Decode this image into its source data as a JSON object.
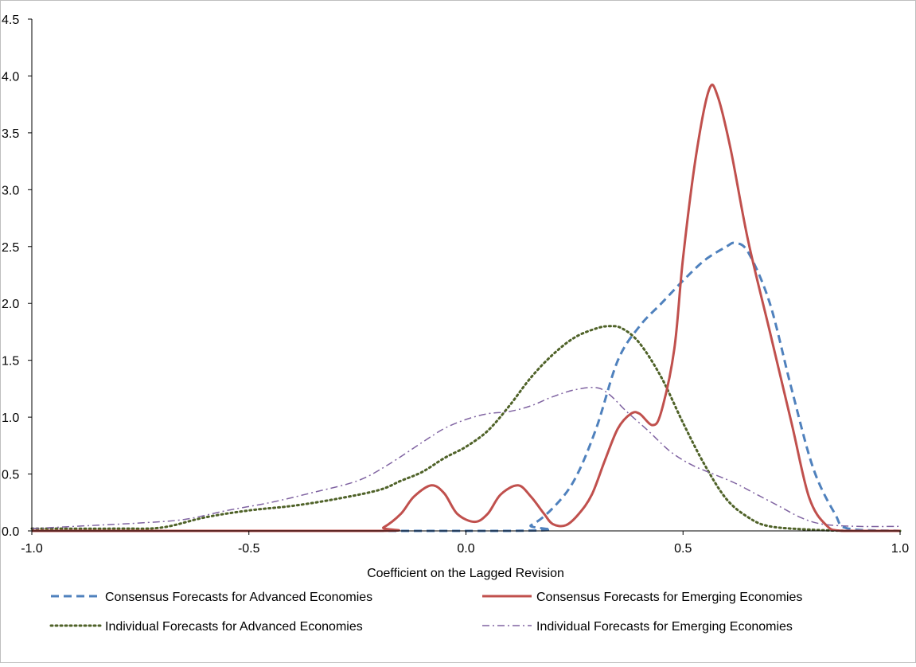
{
  "chart_data": {
    "type": "line",
    "title": "",
    "xlabel": "Coefficient on the Lagged Revision",
    "ylabel": "",
    "xlim": [
      -1.0,
      1.0
    ],
    "ylim": [
      0,
      4.5
    ],
    "x_ticks": [
      "-1.0",
      "-0.5",
      "0.0",
      "0.5",
      "1.0"
    ],
    "y_ticks": [
      "0.0",
      "0.5",
      "1.0",
      "1.5",
      "2.0",
      "2.5",
      "3.0",
      "3.5",
      "4.0",
      "4.5"
    ],
    "grid": false,
    "legend_position": "bottom",
    "series": [
      {
        "name": "Consensus Forecasts for Advanced Economies",
        "color": "#4F81BD",
        "style": "dashed",
        "x": [
          -1.0,
          0.1,
          0.15,
          0.2,
          0.25,
          0.3,
          0.35,
          0.4,
          0.45,
          0.5,
          0.55,
          0.6,
          0.62,
          0.65,
          0.7,
          0.75,
          0.8,
          0.85,
          0.88,
          1.0
        ],
        "y": [
          0.0,
          0.0,
          0.05,
          0.2,
          0.45,
          0.9,
          1.5,
          1.8,
          2.0,
          2.2,
          2.38,
          2.5,
          2.53,
          2.45,
          2.0,
          1.25,
          0.55,
          0.15,
          0.02,
          0.0
        ]
      },
      {
        "name": "Consensus Forecasts for Emerging Economies",
        "color": "#C0504D",
        "style": "solid",
        "x": [
          -1.0,
          -0.22,
          -0.19,
          -0.15,
          -0.12,
          -0.08,
          -0.05,
          -0.02,
          0.02,
          0.05,
          0.08,
          0.12,
          0.15,
          0.18,
          0.2,
          0.23,
          0.26,
          0.29,
          0.32,
          0.35,
          0.38,
          0.4,
          0.43,
          0.45,
          0.48,
          0.5,
          0.53,
          0.56,
          0.58,
          0.61,
          0.65,
          0.7,
          0.75,
          0.79,
          0.83,
          0.87,
          1.0
        ],
        "y": [
          0.0,
          0.0,
          0.03,
          0.15,
          0.3,
          0.4,
          0.33,
          0.15,
          0.08,
          0.15,
          0.32,
          0.4,
          0.3,
          0.15,
          0.06,
          0.05,
          0.15,
          0.32,
          0.62,
          0.9,
          1.03,
          1.03,
          0.93,
          1.05,
          1.6,
          2.4,
          3.3,
          3.88,
          3.82,
          3.35,
          2.55,
          1.75,
          0.95,
          0.3,
          0.05,
          0.0,
          0.0
        ]
      },
      {
        "name": "Individual Forecasts for Advanced Economies",
        "color": "#4F6228",
        "style": "dotted",
        "x": [
          -1.0,
          -0.8,
          -0.7,
          -0.6,
          -0.5,
          -0.4,
          -0.3,
          -0.2,
          -0.15,
          -0.1,
          -0.05,
          0.0,
          0.05,
          0.1,
          0.15,
          0.2,
          0.25,
          0.3,
          0.33,
          0.36,
          0.4,
          0.45,
          0.5,
          0.55,
          0.6,
          0.65,
          0.7,
          0.8,
          0.9,
          1.0
        ],
        "y": [
          0.02,
          0.02,
          0.03,
          0.12,
          0.18,
          0.22,
          0.28,
          0.36,
          0.44,
          0.52,
          0.64,
          0.74,
          0.88,
          1.1,
          1.35,
          1.55,
          1.7,
          1.78,
          1.8,
          1.78,
          1.65,
          1.35,
          0.95,
          0.58,
          0.28,
          0.12,
          0.04,
          0.01,
          0.0,
          0.0
        ]
      },
      {
        "name": "Individual Forecasts for Emerging Economies",
        "color": "#8064A2",
        "style": "dashdot",
        "x": [
          -1.0,
          -0.85,
          -0.75,
          -0.65,
          -0.55,
          -0.45,
          -0.35,
          -0.25,
          -0.18,
          -0.1,
          -0.05,
          0.0,
          0.05,
          0.1,
          0.15,
          0.2,
          0.25,
          0.3,
          0.33,
          0.37,
          0.42,
          0.47,
          0.52,
          0.57,
          0.62,
          0.67,
          0.72,
          0.77,
          0.82,
          0.9,
          1.0
        ],
        "y": [
          0.02,
          0.05,
          0.07,
          0.1,
          0.18,
          0.25,
          0.34,
          0.44,
          0.58,
          0.78,
          0.9,
          0.98,
          1.03,
          1.05,
          1.1,
          1.18,
          1.24,
          1.26,
          1.2,
          1.05,
          0.88,
          0.7,
          0.58,
          0.5,
          0.42,
          0.32,
          0.22,
          0.12,
          0.06,
          0.04,
          0.04
        ]
      }
    ]
  }
}
